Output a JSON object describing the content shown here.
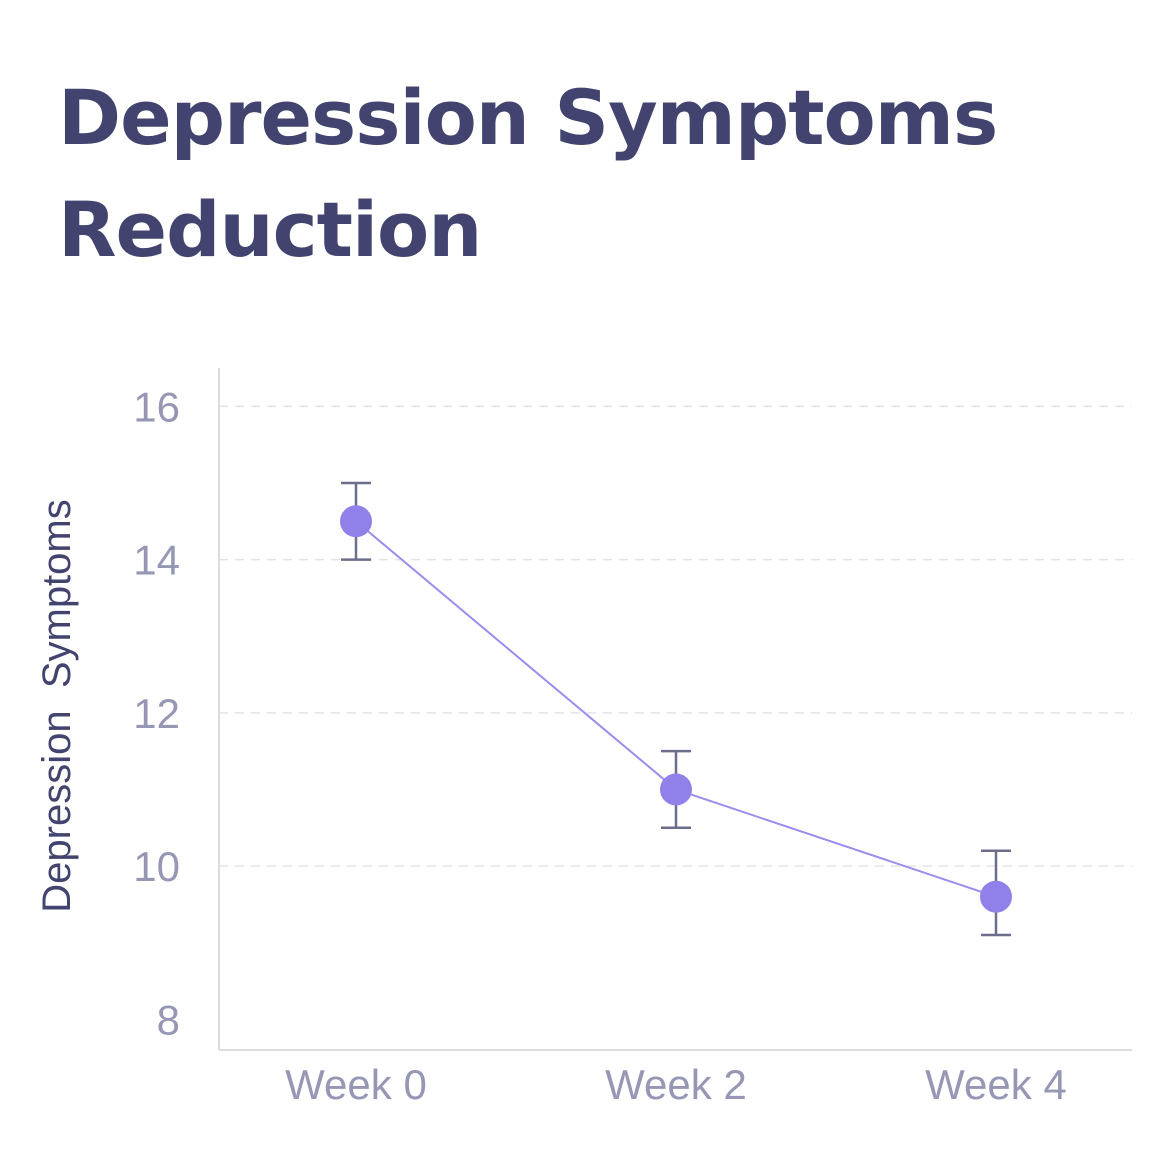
{
  "colors": {
    "title": "#42446f",
    "line": "#9b8cef",
    "marker": "#9080ea",
    "errorbar": "#6c6e8c",
    "grid": "#e2e2ea",
    "axis": "#dcdce4",
    "tick_text": "#9597b4",
    "axis_label": "#42446f"
  },
  "chart_data": {
    "type": "line",
    "title": "Depression Symptoms Reduction",
    "xlabel": "",
    "ylabel": "Depression  Symptoms",
    "categories": [
      "Week 0",
      "Week 2",
      "Week 4"
    ],
    "series": [
      {
        "name": "Depression Symptoms",
        "values": [
          14.5,
          11.0,
          9.6
        ],
        "error_low": [
          14.0,
          10.5,
          9.1
        ],
        "error_high": [
          15.0,
          11.5,
          10.2
        ]
      }
    ],
    "yticks": [
      8,
      10,
      12,
      14,
      16
    ],
    "ytick_labels": [
      "8",
      "10",
      "12",
      "14",
      "16"
    ],
    "ylim": [
      7.6,
      16.5
    ],
    "grid": true
  }
}
